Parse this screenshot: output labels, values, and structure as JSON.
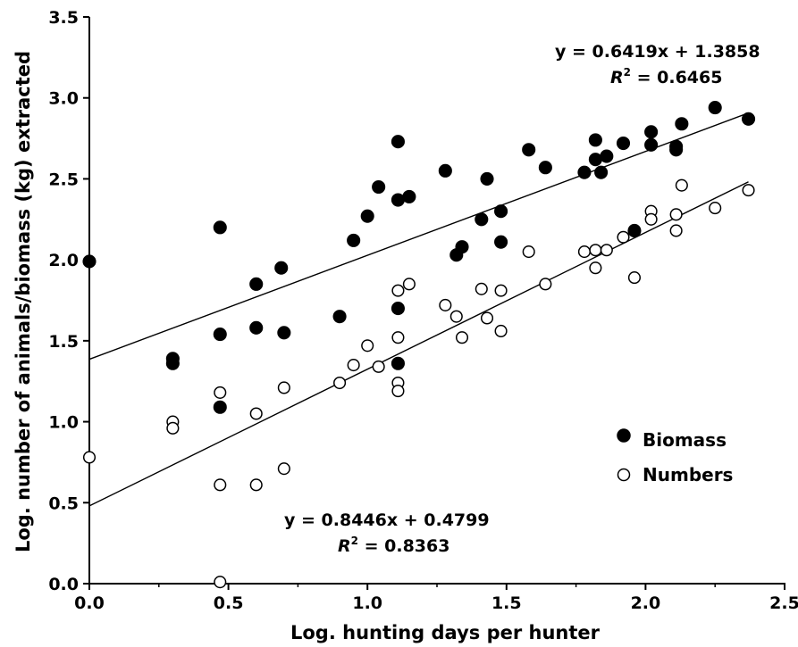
{
  "chart_data": {
    "type": "scatter",
    "title": "",
    "xlabel": "Log. hunting days per hunter",
    "ylabel": "Log. number of animals/biomass (kg) extracted",
    "xlim": [
      0,
      2.5
    ],
    "ylim": [
      0,
      3.5
    ],
    "xticks": [
      "0.0",
      "0.5",
      "1.0",
      "1.5",
      "2.0",
      "2.5"
    ],
    "yticks": [
      "0.0",
      "0.5",
      "1.0",
      "1.5",
      "2.0",
      "2.5",
      "3.0",
      "3.5"
    ],
    "grid": false,
    "legend_position": "right",
    "series": [
      {
        "name": "Biomass",
        "marker": "filled-circle",
        "color": "#000000",
        "regression": {
          "slope": 0.6419,
          "intercept": 1.3858,
          "r2": 0.6465,
          "x_range": [
            0,
            2.37
          ]
        },
        "points": [
          [
            0.0,
            1.99
          ],
          [
            0.3,
            1.39
          ],
          [
            0.3,
            1.36
          ],
          [
            0.47,
            2.2
          ],
          [
            0.47,
            1.54
          ],
          [
            0.47,
            1.09
          ],
          [
            0.6,
            1.85
          ],
          [
            0.6,
            1.58
          ],
          [
            0.69,
            1.95
          ],
          [
            0.7,
            1.55
          ],
          [
            0.9,
            1.65
          ],
          [
            0.95,
            2.12
          ],
          [
            1.0,
            2.27
          ],
          [
            1.04,
            2.45
          ],
          [
            1.11,
            2.73
          ],
          [
            1.11,
            2.37
          ],
          [
            1.11,
            1.7
          ],
          [
            1.11,
            1.36
          ],
          [
            1.15,
            2.39
          ],
          [
            1.28,
            2.55
          ],
          [
            1.32,
            2.03
          ],
          [
            1.34,
            2.08
          ],
          [
            1.41,
            2.25
          ],
          [
            1.43,
            2.5
          ],
          [
            1.48,
            2.3
          ],
          [
            1.48,
            2.11
          ],
          [
            1.58,
            2.68
          ],
          [
            1.64,
            2.57
          ],
          [
            1.78,
            2.54
          ],
          [
            1.82,
            2.74
          ],
          [
            1.82,
            2.62
          ],
          [
            1.84,
            2.54
          ],
          [
            1.86,
            2.64
          ],
          [
            1.92,
            2.72
          ],
          [
            1.96,
            2.18
          ],
          [
            2.02,
            2.79
          ],
          [
            2.02,
            2.71
          ],
          [
            2.11,
            2.7
          ],
          [
            2.11,
            2.68
          ],
          [
            2.13,
            2.84
          ],
          [
            2.25,
            2.94
          ],
          [
            2.37,
            2.87
          ]
        ]
      },
      {
        "name": "Numbers",
        "marker": "open-circle",
        "color": "#000000",
        "regression": {
          "slope": 0.8446,
          "intercept": 0.4799,
          "r2": 0.8363,
          "x_range": [
            0,
            2.37
          ]
        },
        "points": [
          [
            0.0,
            0.78
          ],
          [
            0.3,
            1.0
          ],
          [
            0.3,
            0.96
          ],
          [
            0.47,
            1.18
          ],
          [
            0.47,
            0.61
          ],
          [
            0.47,
            0.01
          ],
          [
            0.6,
            1.05
          ],
          [
            0.6,
            0.61
          ],
          [
            0.7,
            1.21
          ],
          [
            0.7,
            0.71
          ],
          [
            0.9,
            1.24
          ],
          [
            0.95,
            1.35
          ],
          [
            1.0,
            1.47
          ],
          [
            1.04,
            1.34
          ],
          [
            1.11,
            1.81
          ],
          [
            1.11,
            1.52
          ],
          [
            1.11,
            1.24
          ],
          [
            1.11,
            1.19
          ],
          [
            1.15,
            1.85
          ],
          [
            1.28,
            1.72
          ],
          [
            1.32,
            1.65
          ],
          [
            1.34,
            1.52
          ],
          [
            1.41,
            1.82
          ],
          [
            1.43,
            1.64
          ],
          [
            1.48,
            1.81
          ],
          [
            1.48,
            1.56
          ],
          [
            1.58,
            2.05
          ],
          [
            1.64,
            1.85
          ],
          [
            1.78,
            2.05
          ],
          [
            1.82,
            2.06
          ],
          [
            1.82,
            1.95
          ],
          [
            1.86,
            2.06
          ],
          [
            1.92,
            2.14
          ],
          [
            1.96,
            1.89
          ],
          [
            2.02,
            2.3
          ],
          [
            2.02,
            2.25
          ],
          [
            2.11,
            2.28
          ],
          [
            2.11,
            2.18
          ],
          [
            2.13,
            2.46
          ],
          [
            2.25,
            2.32
          ],
          [
            2.37,
            2.43
          ]
        ]
      }
    ],
    "annotations": {
      "biomass_equation": "y = 0.6419x + 1.3858",
      "biomass_r2_label": "R",
      "biomass_r2_sup": "2",
      "biomass_r2_value": " = 0.6465",
      "numbers_equation": "y = 0.8446x + 0.4799",
      "numbers_r2_label": "R",
      "numbers_r2_sup": "2",
      "numbers_r2_value": " = 0.8363"
    }
  }
}
